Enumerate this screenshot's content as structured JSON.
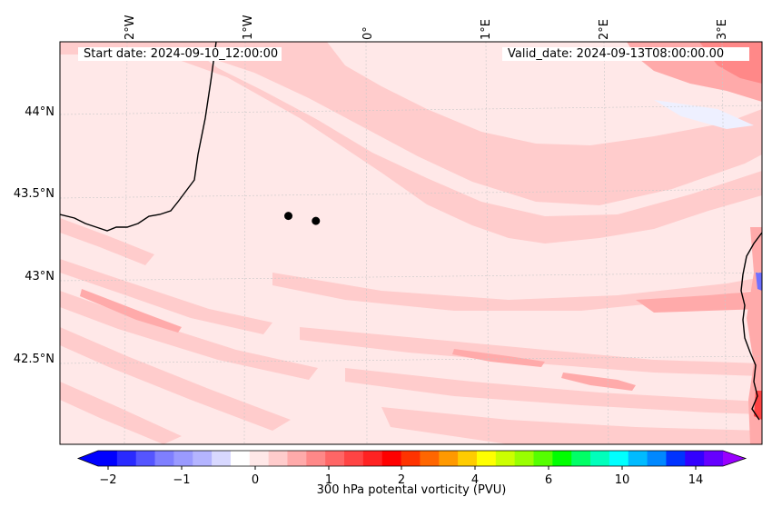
{
  "map": {
    "start_date": "Start date: 2024-09-10_12:00:00",
    "valid_date": "Valid_date: 2024-09-13T08:00:00.00",
    "lat_labels": [
      "44°N",
      "43.5°N",
      "43°N",
      "42.5°N"
    ],
    "lon_labels": [
      "2°W",
      "1°W",
      "0°",
      "1°E",
      "2°E",
      "3°E"
    ],
    "markers": [
      {
        "lon": -0.65,
        "lat": 43.39
      },
      {
        "lon": -0.42,
        "lat": 43.36
      }
    ],
    "colors": {
      "background_low_pv": "#ffe8e8",
      "band_pv_0_5": "#ffcccc",
      "band_pv_1": "#ffaaaa",
      "coastline": "#000000",
      "marker": "#000000"
    }
  },
  "colorbar": {
    "title": "300 hPa potental vorticity (PVU)",
    "ticks": [
      "−2",
      "−1",
      "0",
      "1",
      "2",
      "4",
      "6",
      "10",
      "14"
    ],
    "colors": [
      "#0000ff",
      "#2a2aff",
      "#5555ff",
      "#7f7fff",
      "#9a9aff",
      "#b4b4ff",
      "#d8d8ff",
      "#ffffff",
      "#ffe8e8",
      "#ffcccc",
      "#ffaaaa",
      "#ff8888",
      "#ff6666",
      "#ff4444",
      "#ff2222",
      "#ff0000",
      "#ff3300",
      "#ff6600",
      "#ff9900",
      "#ffcc00",
      "#ffff00",
      "#ccff00",
      "#99ff00",
      "#55ff00",
      "#00ff00",
      "#00ff66",
      "#00ffbb",
      "#00ffff",
      "#00bbff",
      "#0088ff",
      "#0033ff",
      "#3300ff",
      "#6600ff"
    ],
    "extend_low": "#0000ff",
    "extend_high": "#9900ff"
  }
}
